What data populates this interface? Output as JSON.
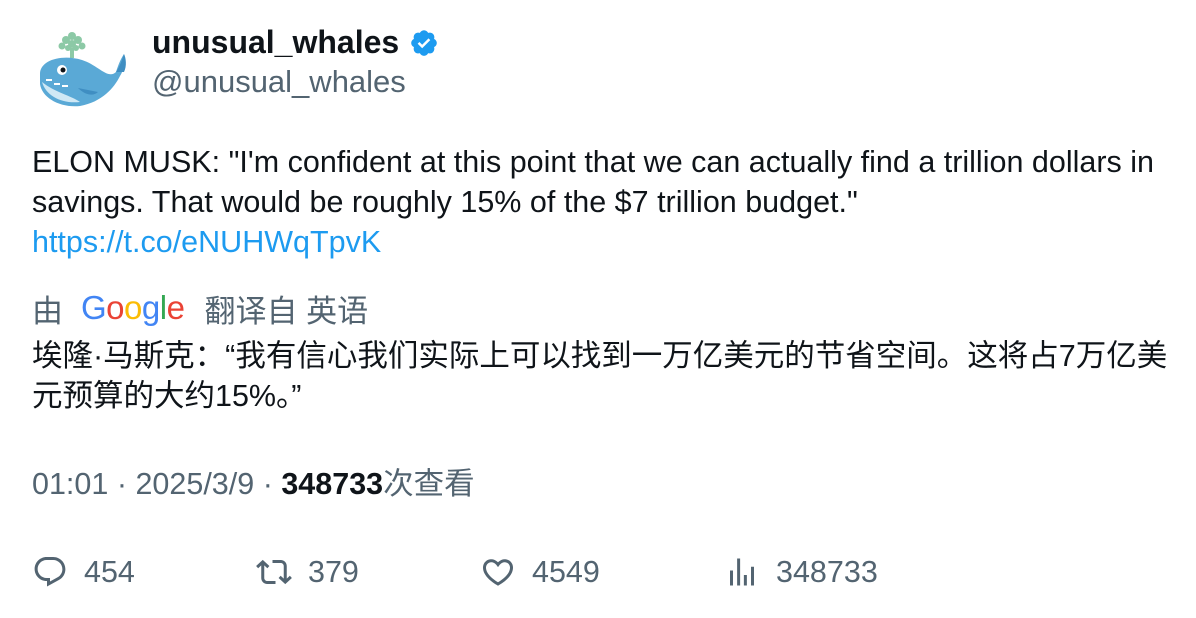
{
  "author": {
    "display_name": "unusual_whales",
    "handle": "@unusual_whales",
    "verified_icon": "verified-badge-icon",
    "avatar_icon": "whale-avatar-icon"
  },
  "tweet": {
    "text": "ELON MUSK: \"I'm confident at this point that we can actually find a trillion dollars in savings. That would be roughly 15% of the $7 trillion budget.\"",
    "link": "https://t.co/eNUHWqTpvK"
  },
  "translation": {
    "prefix": "由",
    "provider": "Google",
    "suffix": "翻译自 英语",
    "text": "埃隆·马斯克：“我有信心我们实际上可以找到一万亿美元的节省空间。这将占7万亿美元预算的大约15%。”"
  },
  "meta": {
    "time": "01:01",
    "separator": "·",
    "date": "2025/3/9",
    "views_count": "348733",
    "views_label": "次查看"
  },
  "actions": {
    "replies": "454",
    "retweets": "379",
    "likes": "4549",
    "views": "348733"
  },
  "colors": {
    "link": "#1d9bf0",
    "secondary_text": "#536471",
    "primary_text": "#0f1419",
    "verified": "#1d9bf0"
  }
}
